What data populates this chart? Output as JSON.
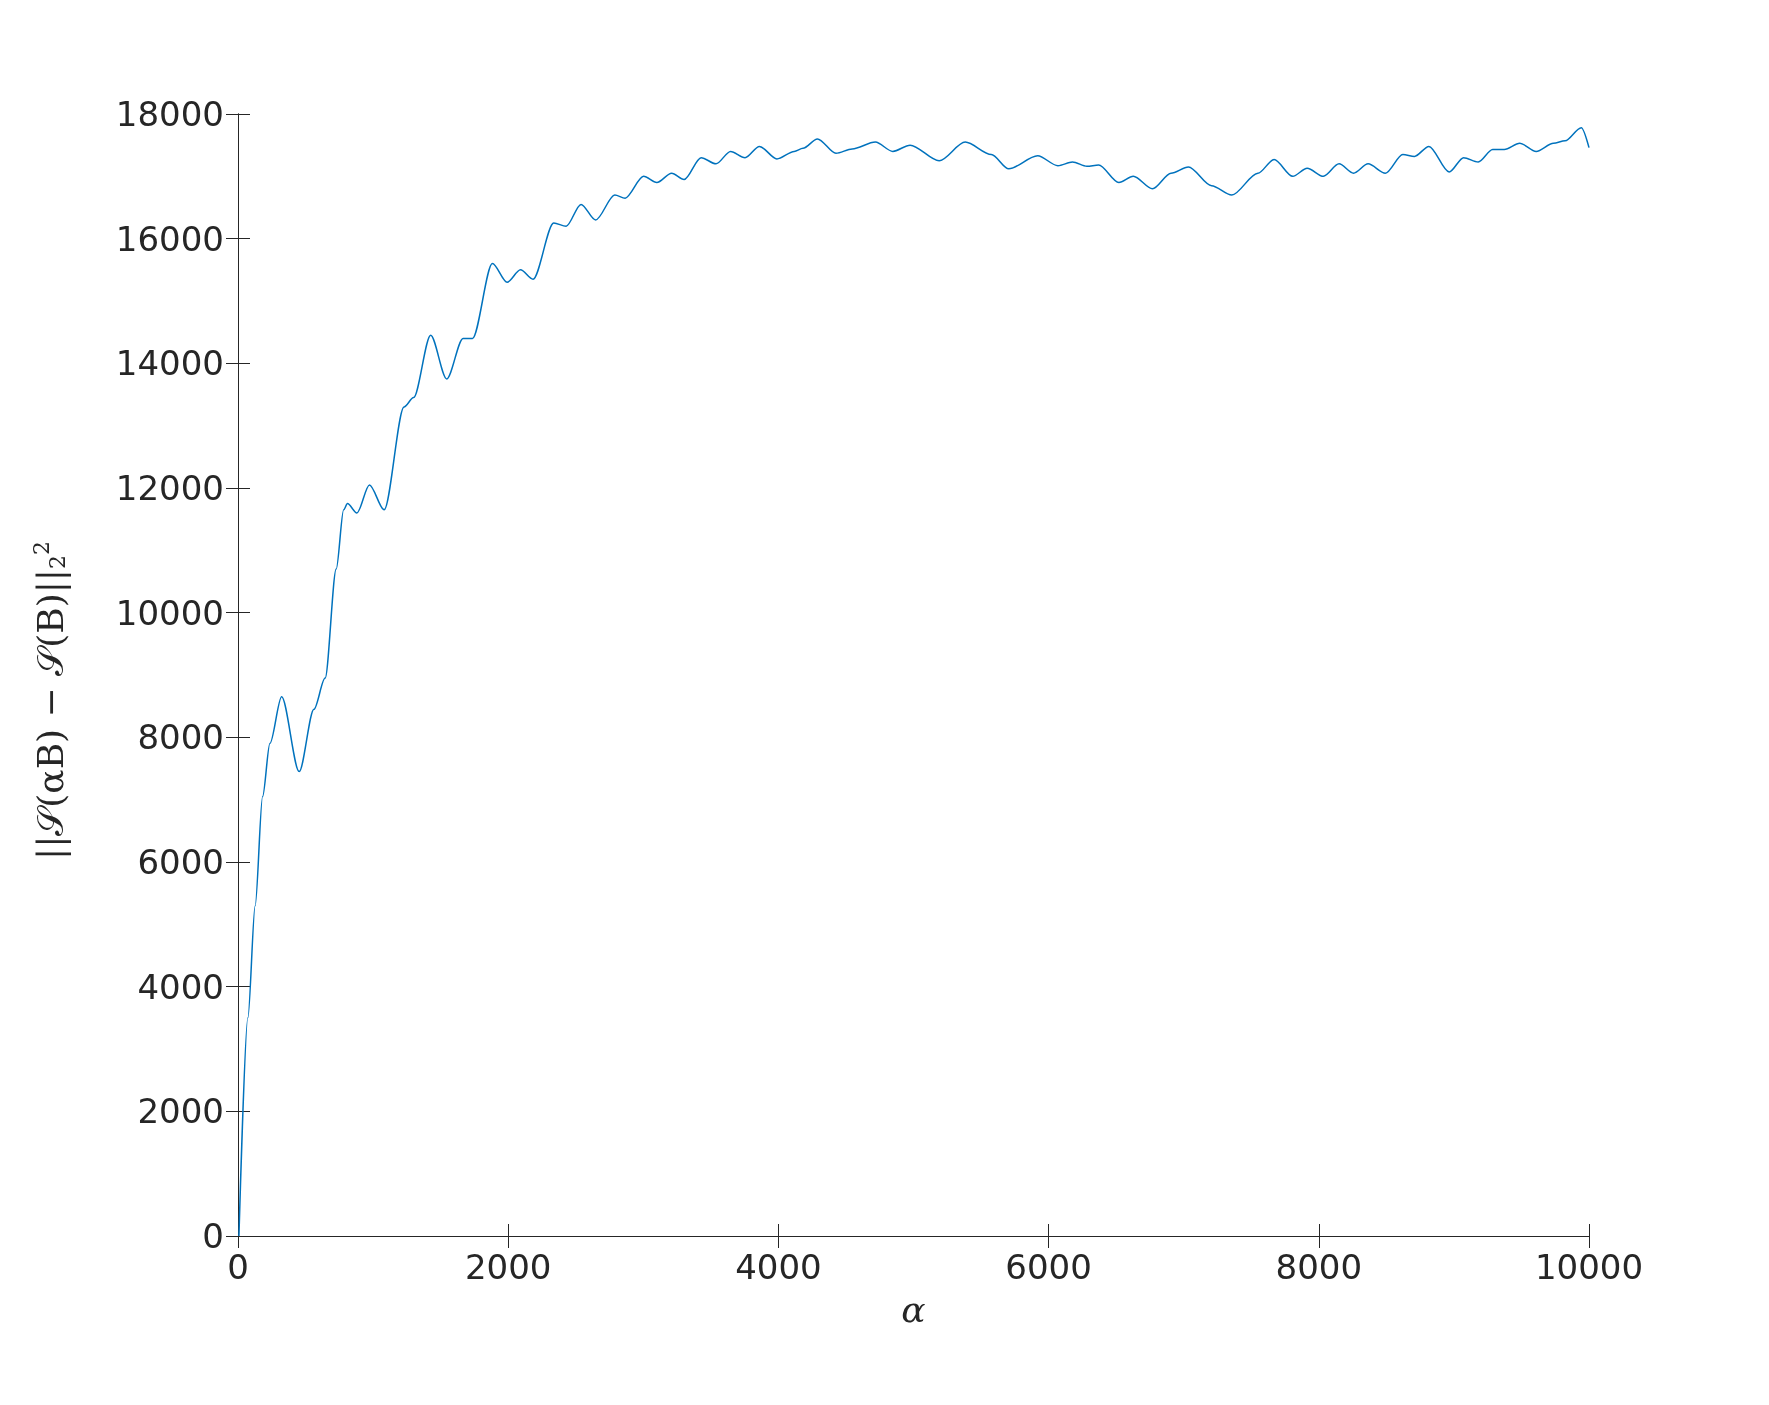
{
  "chart_data": {
    "type": "line",
    "xlabel": "α",
    "ylabel": "||𝒮(αB) − 𝒮(B)||$_{2}$$^{2}$",
    "xlim": [
      0,
      10000
    ],
    "xticks": [
      0,
      2000,
      4000,
      6000,
      8000,
      10000
    ],
    "ylim": [
      0,
      18000
    ],
    "yticks": [
      0,
      2000,
      4000,
      6000,
      8000,
      10000,
      12000,
      14000,
      16000,
      18000
    ],
    "grid": false,
    "series": [
      {
        "color": "#0072bd",
        "x": [
          7,
          73,
          127,
          182,
          236,
          323,
          453,
          562,
          645,
          727,
          782,
          810,
          880,
          973,
          1082,
          1229,
          1300,
          1426,
          1545,
          1666,
          1736,
          1883,
          1992,
          2091,
          2184,
          2337,
          2429,
          2539,
          2647,
          2789,
          2866,
          3002,
          3100,
          3210,
          3302,
          3428,
          3538,
          3646,
          3753,
          3860,
          3989,
          4117,
          4182,
          4289,
          4426,
          4546,
          4718,
          4847,
          4975,
          5190,
          5383,
          5576,
          5705,
          5919,
          6069,
          6177,
          6284,
          6370,
          6520,
          6627,
          6769,
          6906,
          7035,
          7206,
          7356,
          7549,
          7669,
          7807,
          7914,
          8034,
          8150,
          8257,
          8365,
          8493,
          8622,
          8708,
          8815,
          8965,
          9072,
          9180,
          9287,
          9373,
          9488,
          9609,
          9737,
          9823,
          9943,
          10000
        ],
        "values": [
          0,
          3500,
          5300,
          7050,
          7900,
          8650,
          7450,
          8450,
          8950,
          10700,
          11650,
          11750,
          11600,
          12050,
          11650,
          13300,
          13450,
          14450,
          13750,
          14400,
          14400,
          15600,
          15300,
          15500,
          15350,
          16250,
          16200,
          16550,
          16300,
          16700,
          16650,
          17000,
          16900,
          17050,
          16950,
          17300,
          17200,
          17400,
          17300,
          17480,
          17280,
          17400,
          17450,
          17600,
          17370,
          17440,
          17550,
          17400,
          17500,
          17250,
          17550,
          17350,
          17120,
          17330,
          17170,
          17230,
          17160,
          17180,
          16900,
          17000,
          16800,
          17050,
          17150,
          16850,
          16700,
          17050,
          17270,
          17000,
          17130,
          17000,
          17200,
          17050,
          17200,
          17050,
          17350,
          17320,
          17480,
          17070,
          17300,
          17230,
          17430,
          17430,
          17530,
          17400,
          17530,
          17570,
          17780,
          17460
        ]
      }
    ]
  }
}
